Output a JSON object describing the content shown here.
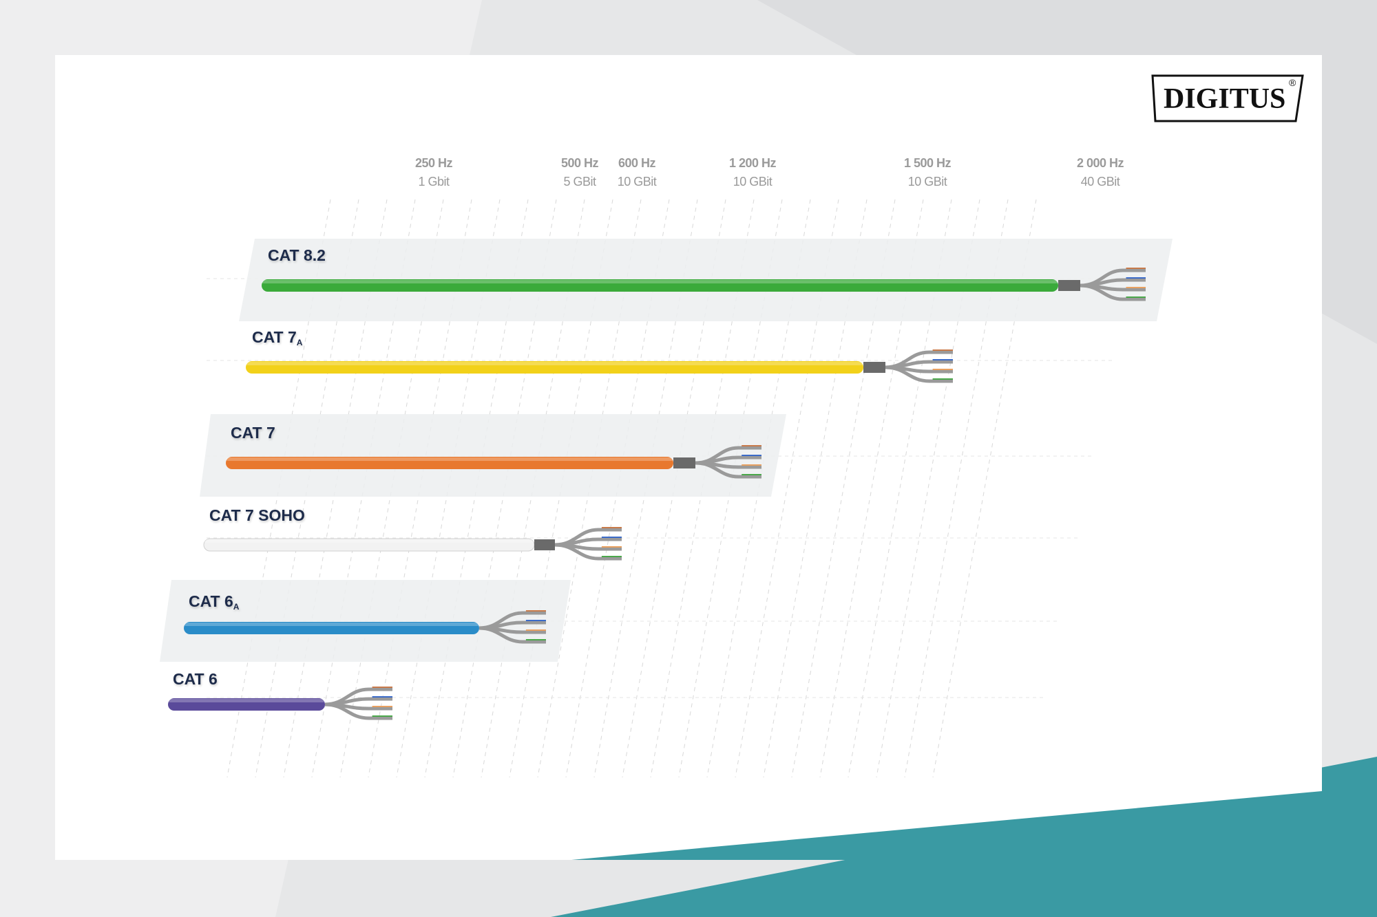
{
  "brand": {
    "logo_text": "DIGITUS",
    "registered": "®"
  },
  "frequency_axis": [
    {
      "freq": "250 Hz",
      "speed": "1 Gbit"
    },
    {
      "freq": "500 Hz",
      "speed": "5 GBit"
    },
    {
      "freq": "600 Hz",
      "speed": "10 GBit"
    },
    {
      "freq": "1 200 Hz",
      "speed": "10 GBit"
    },
    {
      "freq": "1 500 Hz",
      "speed": "10 GBit"
    },
    {
      "freq": "2 000 Hz",
      "speed": "40 GBit"
    }
  ],
  "cables": [
    {
      "name": "CAT 8.2",
      "sub": "",
      "color": "#3aaa3a",
      "frequency": "2 000 Hz"
    },
    {
      "name": "CAT 7",
      "sub": "A",
      "color": "#f2d11a",
      "frequency": "1 500 Hz"
    },
    {
      "name": "CAT 7",
      "sub": "",
      "color": "#e8782e",
      "frequency": "1 200 Hz"
    },
    {
      "name": "CAT 7 SOHO",
      "sub": "",
      "color": "#f2f2f2",
      "frequency": "600 Hz"
    },
    {
      "name": "CAT 6",
      "sub": "A",
      "color": "#2a8cc8",
      "frequency": "500 Hz"
    },
    {
      "name": "CAT 6",
      "sub": "",
      "color": "#5a4a9a",
      "frequency": "250 Hz"
    }
  ],
  "colors": {
    "teal": "#3a9aa3",
    "label": "#1d2b4a",
    "axis_text": "#9a9a9a"
  }
}
